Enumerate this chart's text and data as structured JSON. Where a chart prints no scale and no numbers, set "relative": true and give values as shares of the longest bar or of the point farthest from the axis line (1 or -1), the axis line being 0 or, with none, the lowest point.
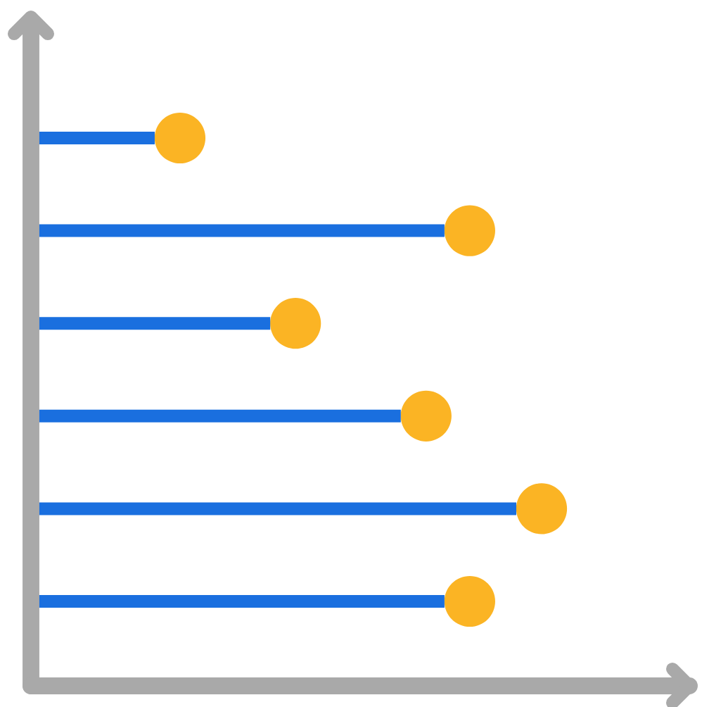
{
  "chart_data": {
    "type": "bar",
    "orientation": "horizontal",
    "relative": true,
    "categories": [
      null,
      null,
      null,
      null,
      null,
      null
    ],
    "series": [
      {
        "color": "#1a6fdf",
        "values": [
          0.255,
          0.852,
          0.493,
          0.762,
          1,
          0.852
        ]
      }
    ],
    "marker": "circle",
    "grid": false,
    "legend": false
  }
}
